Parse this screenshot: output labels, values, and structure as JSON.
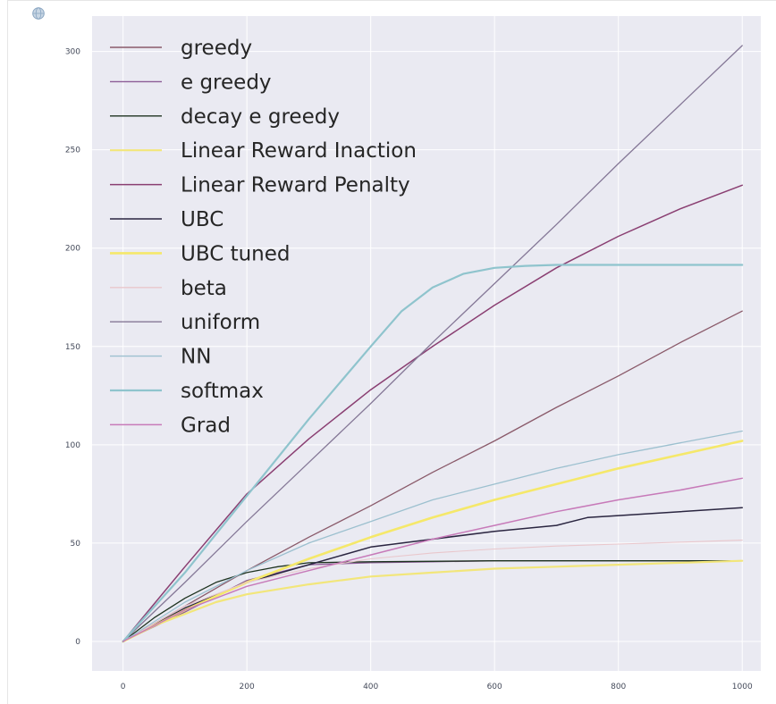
{
  "output_icon": "globe-icon",
  "chart_data": {
    "type": "line",
    "title": "",
    "xlabel": "",
    "ylabel": "",
    "xlim": [
      -50,
      1030
    ],
    "ylim": [
      -15,
      318
    ],
    "xticks": [
      0,
      200,
      400,
      600,
      800,
      1000
    ],
    "yticks": [
      0,
      50,
      100,
      150,
      200,
      250,
      300
    ],
    "grid": true,
    "background": "#eaeaf2",
    "legend_position": "top-left",
    "series": [
      {
        "name": "greedy",
        "color": "#8a5a6a",
        "width": 1.3,
        "points": [
          [
            0,
            0
          ],
          [
            100,
            18
          ],
          [
            200,
            36
          ],
          [
            300,
            53
          ],
          [
            400,
            69
          ],
          [
            500,
            86
          ],
          [
            600,
            102
          ],
          [
            700,
            119
          ],
          [
            800,
            135
          ],
          [
            900,
            152
          ],
          [
            1000,
            168
          ]
        ]
      },
      {
        "name": "e greedy",
        "color": "#8c5c96",
        "width": 1.3,
        "points": [
          [
            0,
            0
          ],
          [
            100,
            15
          ],
          [
            200,
            31
          ],
          [
            300,
            39
          ],
          [
            400,
            40
          ],
          [
            500,
            40.5
          ],
          [
            600,
            41
          ],
          [
            700,
            41
          ],
          [
            800,
            41
          ],
          [
            900,
            41
          ],
          [
            1000,
            41
          ]
        ]
      },
      {
        "name": "decay e greedy",
        "color": "#1e3320",
        "width": 1.3,
        "points": [
          [
            0,
            0
          ],
          [
            50,
            12
          ],
          [
            100,
            22
          ],
          [
            150,
            30
          ],
          [
            200,
            35
          ],
          [
            250,
            38
          ],
          [
            300,
            40
          ],
          [
            400,
            40.5
          ],
          [
            600,
            41
          ],
          [
            800,
            41
          ],
          [
            1000,
            41
          ]
        ]
      },
      {
        "name": "Linear Reward Inaction",
        "color": "#f2e67a",
        "width": 2.2,
        "points": [
          [
            0,
            0
          ],
          [
            50,
            8
          ],
          [
            100,
            14
          ],
          [
            150,
            20
          ],
          [
            200,
            24
          ],
          [
            300,
            29
          ],
          [
            400,
            33
          ],
          [
            500,
            35
          ],
          [
            600,
            37
          ],
          [
            700,
            38
          ],
          [
            800,
            39
          ],
          [
            900,
            40
          ],
          [
            1000,
            41
          ]
        ]
      },
      {
        "name": "Linear Reward Penalty",
        "color": "#8a3f72",
        "width": 1.5,
        "points": [
          [
            0,
            0
          ],
          [
            100,
            38
          ],
          [
            200,
            75
          ],
          [
            300,
            103
          ],
          [
            400,
            128
          ],
          [
            500,
            150
          ],
          [
            600,
            171
          ],
          [
            700,
            190
          ],
          [
            800,
            206
          ],
          [
            900,
            220
          ],
          [
            1000,
            232
          ]
        ]
      },
      {
        "name": "UBC",
        "color": "#2a2540",
        "width": 1.5,
        "points": [
          [
            0,
            0
          ],
          [
            100,
            17
          ],
          [
            200,
            30
          ],
          [
            300,
            39
          ],
          [
            400,
            48
          ],
          [
            500,
            52
          ],
          [
            600,
            56
          ],
          [
            700,
            59
          ],
          [
            750,
            63
          ],
          [
            800,
            64
          ],
          [
            900,
            66
          ],
          [
            1000,
            68
          ]
        ]
      },
      {
        "name": "UBC tuned",
        "color": "#f5e86a",
        "width": 2.6,
        "points": [
          [
            0,
            0
          ],
          [
            100,
            16
          ],
          [
            200,
            30
          ],
          [
            300,
            42
          ],
          [
            400,
            53
          ],
          [
            500,
            63
          ],
          [
            600,
            72
          ],
          [
            700,
            80
          ],
          [
            800,
            88
          ],
          [
            900,
            95
          ],
          [
            1000,
            102
          ]
        ]
      },
      {
        "name": "beta",
        "color": "#e9c7cc",
        "width": 1.1,
        "points": [
          [
            0,
            0
          ],
          [
            100,
            18
          ],
          [
            200,
            30
          ],
          [
            300,
            37
          ],
          [
            400,
            42
          ],
          [
            500,
            45
          ],
          [
            600,
            47
          ],
          [
            700,
            48.5
          ],
          [
            800,
            49.5
          ],
          [
            900,
            50.5
          ],
          [
            1000,
            51.5
          ]
        ]
      },
      {
        "name": "uniform",
        "color": "#857897",
        "width": 1.3,
        "points": [
          [
            0,
            0
          ],
          [
            100,
            30
          ],
          [
            200,
            61
          ],
          [
            300,
            91
          ],
          [
            400,
            121
          ],
          [
            500,
            152
          ],
          [
            600,
            182
          ],
          [
            700,
            212
          ],
          [
            800,
            243
          ],
          [
            900,
            273
          ],
          [
            1000,
            303
          ]
        ]
      },
      {
        "name": "NN",
        "color": "#9cc0cf",
        "width": 1.3,
        "points": [
          [
            0,
            0
          ],
          [
            100,
            20
          ],
          [
            200,
            36
          ],
          [
            300,
            50
          ],
          [
            400,
            61
          ],
          [
            500,
            72
          ],
          [
            600,
            80
          ],
          [
            700,
            88
          ],
          [
            800,
            95
          ],
          [
            900,
            101
          ],
          [
            1000,
            107
          ]
        ]
      },
      {
        "name": "softmax",
        "color": "#8fc4cd",
        "width": 2.2,
        "points": [
          [
            0,
            0
          ],
          [
            100,
            35
          ],
          [
            200,
            74
          ],
          [
            300,
            113
          ],
          [
            400,
            150
          ],
          [
            450,
            168
          ],
          [
            500,
            180
          ],
          [
            550,
            187
          ],
          [
            600,
            190
          ],
          [
            650,
            191
          ],
          [
            700,
            191.5
          ],
          [
            800,
            191.5
          ],
          [
            1000,
            191.5
          ]
        ]
      },
      {
        "name": "Grad",
        "color": "#c77ab9",
        "width": 1.5,
        "points": [
          [
            0,
            0
          ],
          [
            100,
            16
          ],
          [
            200,
            28
          ],
          [
            300,
            36
          ],
          [
            400,
            44
          ],
          [
            500,
            52
          ],
          [
            600,
            59
          ],
          [
            700,
            66
          ],
          [
            800,
            72
          ],
          [
            900,
            77
          ],
          [
            1000,
            83
          ]
        ]
      }
    ]
  }
}
